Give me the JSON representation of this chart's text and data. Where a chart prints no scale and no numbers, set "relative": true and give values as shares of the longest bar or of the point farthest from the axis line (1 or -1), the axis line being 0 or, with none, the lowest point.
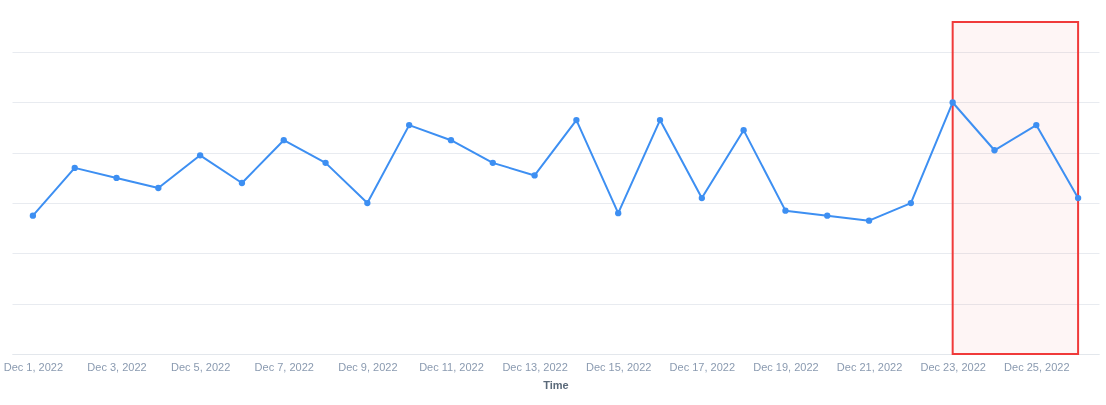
{
  "chart_data": {
    "type": "line",
    "xlabel": "Time",
    "x": [
      "2022-12-01",
      "2022-12-02",
      "2022-12-03",
      "2022-12-04",
      "2022-12-05",
      "2022-12-06",
      "2022-12-07",
      "2022-12-08",
      "2022-12-09",
      "2022-12-10",
      "2022-12-11",
      "2022-12-12",
      "2022-12-13",
      "2022-12-14",
      "2022-12-15",
      "2022-12-16",
      "2022-12-17",
      "2022-12-18",
      "2022-12-19",
      "2022-12-20",
      "2022-12-21",
      "2022-12-22",
      "2022-12-23",
      "2022-12-24",
      "2022-12-25",
      "2022-12-26"
    ],
    "series": [
      {
        "color": "#3d8ff2",
        "values": [
          0.55,
          0.74,
          0.7,
          0.66,
          0.79,
          0.68,
          0.85,
          0.76,
          0.6,
          0.91,
          0.85,
          0.76,
          0.71,
          0.93,
          0.56,
          0.93,
          0.62,
          0.89,
          0.57,
          0.55,
          0.53,
          0.6,
          1.0,
          0.81,
          0.91,
          0.62
        ]
      }
    ],
    "relative": true,
    "xlim": [
      "2022-11-30T12:00",
      "2022-12-26T12:00"
    ],
    "xticks": [
      {
        "value": "2022-12-01",
        "label": "Dec 1, 2022"
      },
      {
        "value": "2022-12-03",
        "label": "Dec 3, 2022"
      },
      {
        "value": "2022-12-05",
        "label": "Dec 5, 2022"
      },
      {
        "value": "2022-12-07",
        "label": "Dec 7, 2022"
      },
      {
        "value": "2022-12-09",
        "label": "Dec 9, 2022"
      },
      {
        "value": "2022-12-11",
        "label": "Dec 11, 2022"
      },
      {
        "value": "2022-12-13",
        "label": "Dec 13, 2022"
      },
      {
        "value": "2022-12-15",
        "label": "Dec 15, 2022"
      },
      {
        "value": "2022-12-17",
        "label": "Dec 17, 2022"
      },
      {
        "value": "2022-12-19",
        "label": "Dec 19, 2022"
      },
      {
        "value": "2022-12-21",
        "label": "Dec 21, 2022"
      },
      {
        "value": "2022-12-23",
        "label": "Dec 23, 2022"
      },
      {
        "value": "2022-12-25",
        "label": "Dec 25, 2022"
      }
    ],
    "grid": "y",
    "marker": "circle",
    "line_style": "solid",
    "bands": [
      {
        "axis": "x",
        "from": "2022-12-23",
        "to": "2022-12-26",
        "color": "#f03a3a"
      }
    ]
  }
}
